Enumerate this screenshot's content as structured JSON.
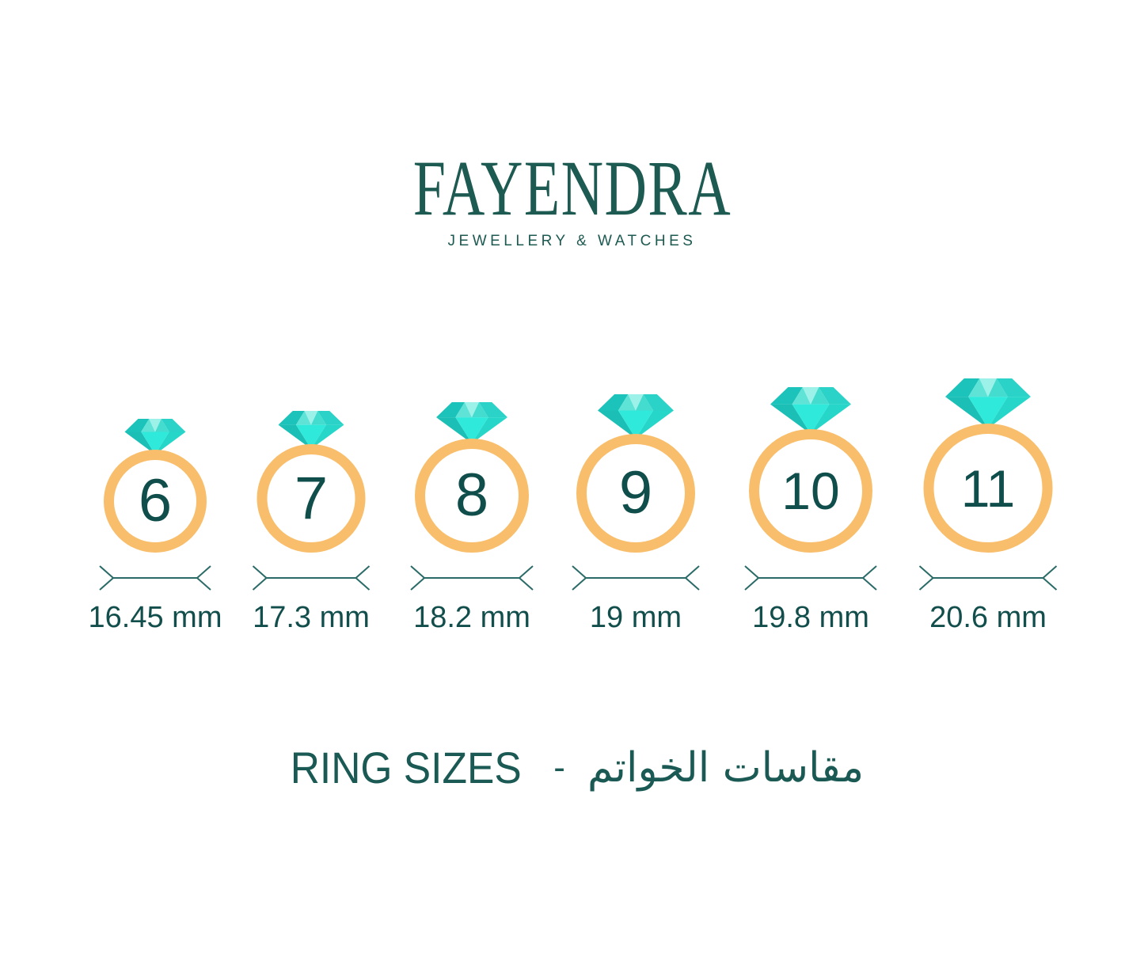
{
  "brand": {
    "name": "FAYENDRA",
    "tagline": "JEWELLERY & WATCHES"
  },
  "title": {
    "en": "RING SIZES",
    "separator": "-",
    "ar": "مقاسات الخواتم"
  },
  "rings": [
    {
      "size": "6",
      "diameter_mm": 16.45,
      "diameter_label": "16.45 mm"
    },
    {
      "size": "7",
      "diameter_mm": 17.3,
      "diameter_label": "17.3 mm"
    },
    {
      "size": "8",
      "diameter_mm": 18.2,
      "diameter_label": "18.2 mm"
    },
    {
      "size": "9",
      "diameter_mm": 19,
      "diameter_label": "19 mm"
    },
    {
      "size": "10",
      "diameter_mm": 19.8,
      "diameter_label": "19.8 mm"
    },
    {
      "size": "11",
      "diameter_mm": 20.6,
      "diameter_label": "20.6 mm"
    }
  ],
  "colors": {
    "background": "#FFFFFF",
    "text": "#124F4C",
    "logo": "#1D5A52",
    "band": "#F8BE6C",
    "dimension_line": "#2A6B68",
    "diamond": [
      "#1CC3BA",
      "#5FE3D7",
      "#9CF2E9",
      "#45DCD0",
      "#2BD2C7",
      "#1BBFB5",
      "#2FE9DB",
      "#26D6C9"
    ]
  }
}
